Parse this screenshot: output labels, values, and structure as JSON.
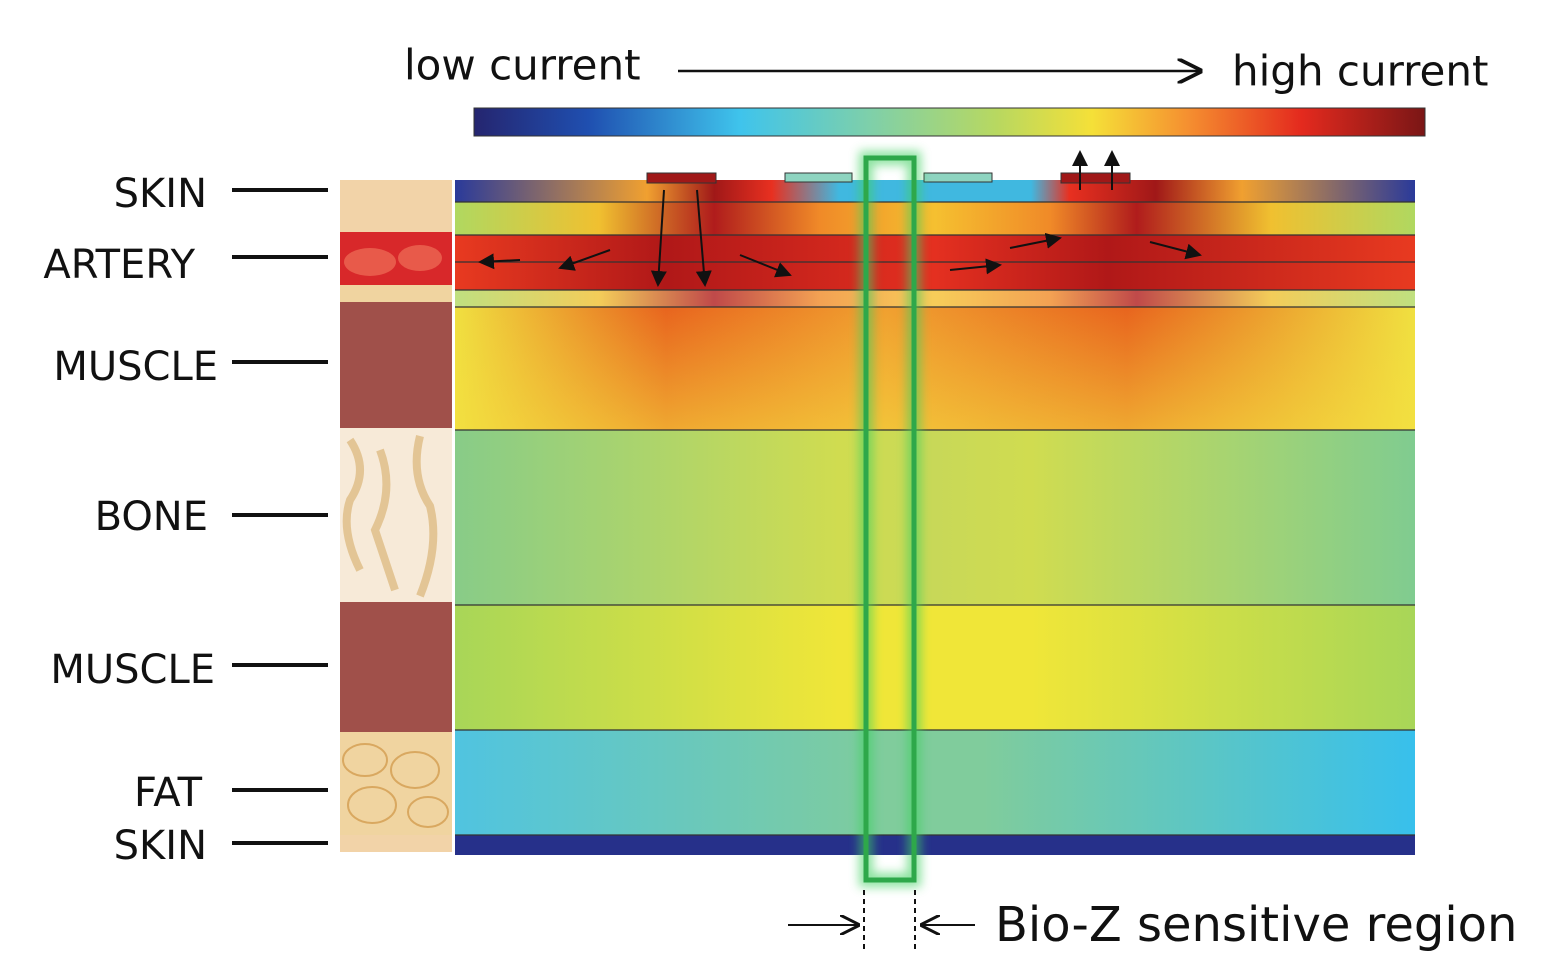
{
  "header": {
    "low": "low current",
    "high": "high current"
  },
  "layers": [
    "SKIN",
    "ARTERY",
    "MUSCLE",
    "BONE",
    "MUSCLE",
    "FAT",
    "SKIN"
  ],
  "caption": "Bio-Z sensitive region"
}
